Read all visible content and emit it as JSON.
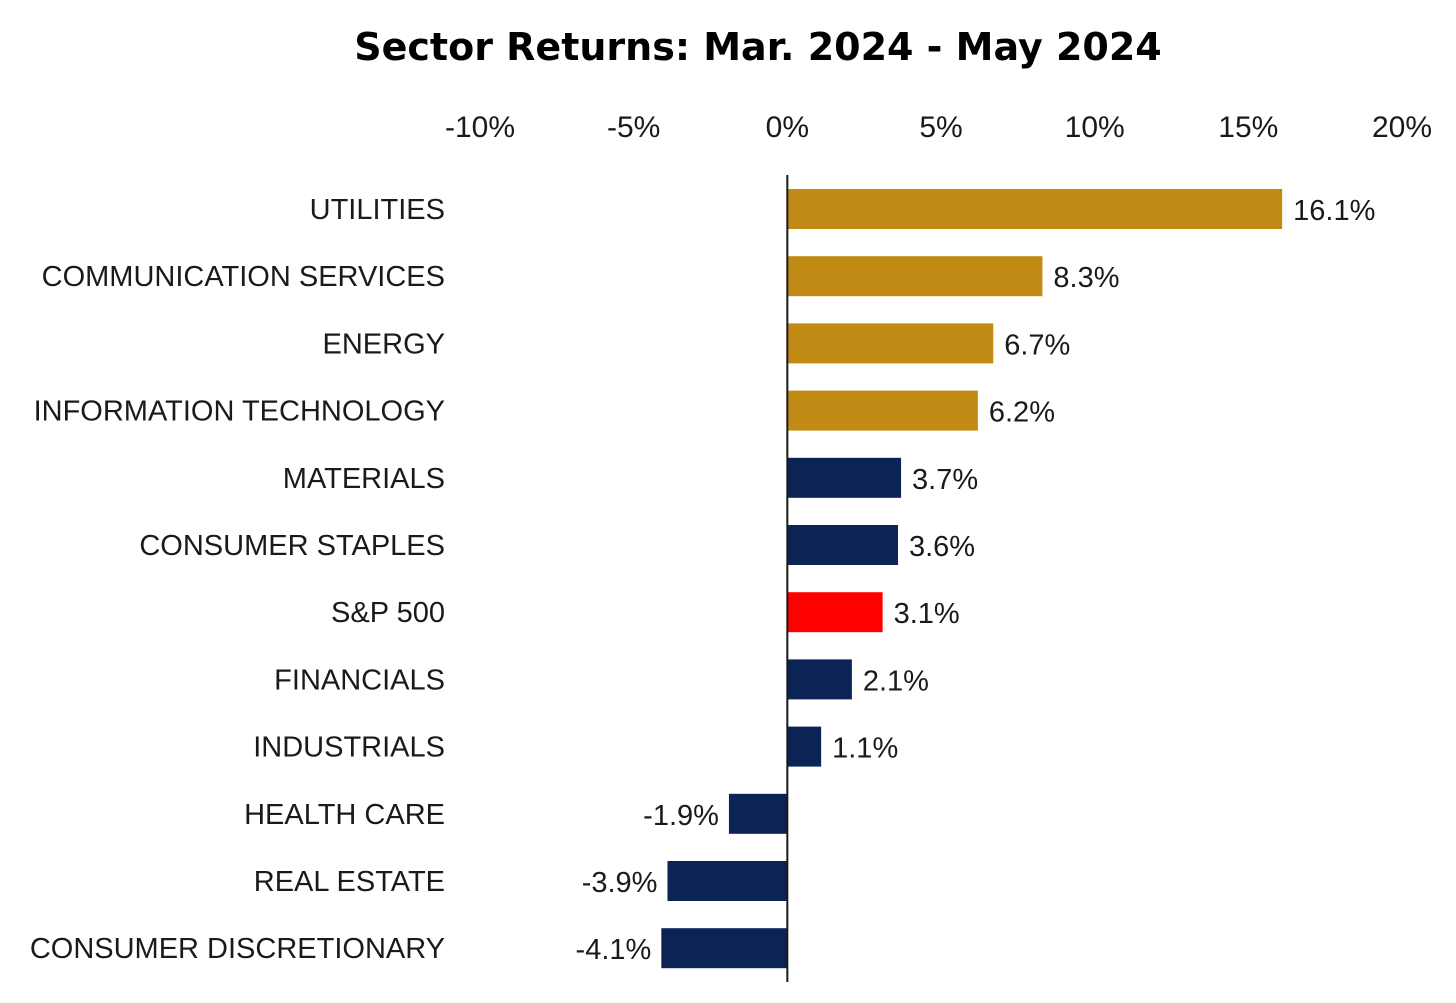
{
  "chart_data": {
    "type": "bar",
    "orientation": "horizontal",
    "title": "Sector Returns: Mar. 2024 - May 2024",
    "xlim": [
      -10,
      20
    ],
    "x_ticks": [
      -10,
      -5,
      0,
      5,
      10,
      15,
      20
    ],
    "x_tick_labels": [
      "-10%",
      "-5%",
      "0%",
      "5%",
      "10%",
      "15%",
      "20%"
    ],
    "x_axis_position": "top",
    "grid": false,
    "legend": "none",
    "categories": [
      "UTILITIES",
      "COMMUNICATION SERVICES",
      "ENERGY",
      "INFORMATION TECHNOLOGY",
      "MATERIALS",
      "CONSUMER STAPLES",
      "S&P 500",
      "FINANCIALS",
      "INDUSTRIALS",
      "HEALTH CARE",
      "REAL ESTATE",
      "CONSUMER DISCRETIONARY"
    ],
    "values": [
      16.1,
      8.3,
      6.7,
      6.2,
      3.7,
      3.6,
      3.1,
      2.1,
      1.1,
      -1.9,
      -3.9,
      -4.1
    ],
    "value_labels": [
      "16.1%",
      "8.3%",
      "6.7%",
      "6.2%",
      "3.7%",
      "3.6%",
      "3.1%",
      "2.1%",
      "1.1%",
      "-1.9%",
      "-3.9%",
      "-4.1%"
    ],
    "bar_colors": [
      "#C08A15",
      "#C08A15",
      "#C08A15",
      "#C08A15",
      "#0C2356",
      "#0C2356",
      "#FF0000",
      "#0C2356",
      "#0C2356",
      "#0C2356",
      "#0C2356",
      "#0C2356"
    ]
  }
}
